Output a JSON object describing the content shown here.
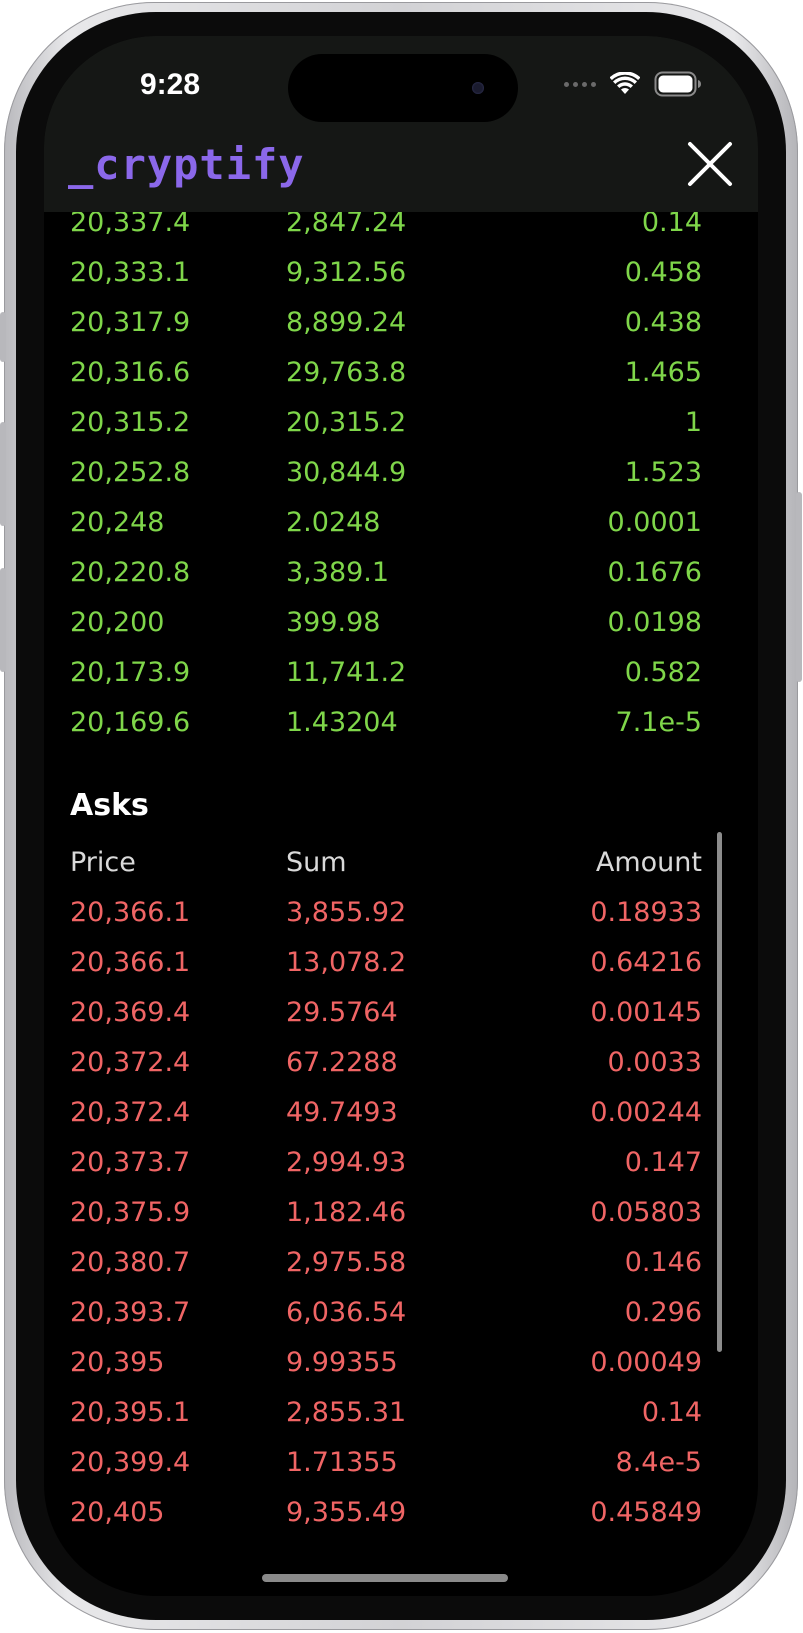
{
  "status": {
    "time": "9:28"
  },
  "app": {
    "brand": "_cryptify"
  },
  "bids": [
    {
      "price": "20,337.4",
      "sum": "2,847.24",
      "amount": "0.14"
    },
    {
      "price": "20,333.1",
      "sum": "9,312.56",
      "amount": "0.458"
    },
    {
      "price": "20,317.9",
      "sum": "8,899.24",
      "amount": "0.438"
    },
    {
      "price": "20,316.6",
      "sum": "29,763.8",
      "amount": "1.465"
    },
    {
      "price": "20,315.2",
      "sum": "20,315.2",
      "amount": "1"
    },
    {
      "price": "20,252.8",
      "sum": "30,844.9",
      "amount": "1.523"
    },
    {
      "price": "20,248",
      "sum": "2.0248",
      "amount": "0.0001"
    },
    {
      "price": "20,220.8",
      "sum": "3,389.1",
      "amount": "0.1676"
    },
    {
      "price": "20,200",
      "sum": "399.98",
      "amount": "0.0198"
    },
    {
      "price": "20,173.9",
      "sum": "11,741.2",
      "amount": "0.582"
    },
    {
      "price": "20,169.6",
      "sum": "1.43204",
      "amount": "7.1e-5"
    }
  ],
  "asks_section": {
    "title": "Asks",
    "columns": {
      "price": "Price",
      "sum": "Sum",
      "amount": "Amount"
    }
  },
  "asks": [
    {
      "price": "20,366.1",
      "sum": "3,855.92",
      "amount": "0.18933"
    },
    {
      "price": "20,366.1",
      "sum": "13,078.2",
      "amount": "0.64216"
    },
    {
      "price": "20,369.4",
      "sum": "29.5764",
      "amount": "0.00145"
    },
    {
      "price": "20,372.4",
      "sum": "67.2288",
      "amount": "0.0033"
    },
    {
      "price": "20,372.4",
      "sum": "49.7493",
      "amount": "0.00244"
    },
    {
      "price": "20,373.7",
      "sum": "2,994.93",
      "amount": "0.147"
    },
    {
      "price": "20,375.9",
      "sum": "1,182.46",
      "amount": "0.05803"
    },
    {
      "price": "20,380.7",
      "sum": "2,975.58",
      "amount": "0.146"
    },
    {
      "price": "20,393.7",
      "sum": "6,036.54",
      "amount": "0.296"
    },
    {
      "price": "20,395",
      "sum": "9.99355",
      "amount": "0.00049"
    },
    {
      "price": "20,395.1",
      "sum": "2,855.31",
      "amount": "0.14"
    },
    {
      "price": "20,399.4",
      "sum": "1.71355",
      "amount": "8.4e-5"
    },
    {
      "price": "20,405",
      "sum": "9,355.49",
      "amount": "0.45849"
    }
  ],
  "colors": {
    "brand": "#8b68ea",
    "bid": "#7fd64a",
    "ask": "#f06565",
    "header_bg": "#151715"
  },
  "icons": {
    "close": "close-icon",
    "wifi": "wifi-icon",
    "battery": "battery-icon",
    "signal": "cellular-dots-icon"
  }
}
